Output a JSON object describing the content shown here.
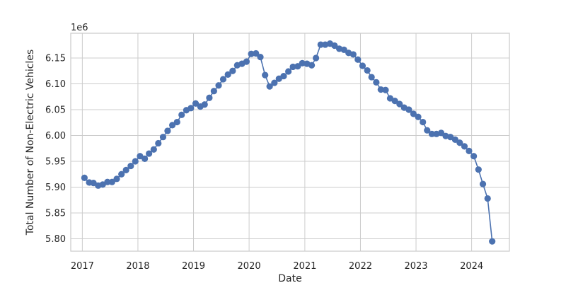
{
  "chart_data": {
    "type": "line",
    "title": "",
    "xlabel": "Date",
    "ylabel": "Total Number of Non-Electric Vehicles",
    "offset_label": "1e6",
    "y_multiplier": 1000000,
    "x_ticks": [
      "2017",
      "2018",
      "2019",
      "2020",
      "2021",
      "2022",
      "2023",
      "2024"
    ],
    "y_ticks": [
      "5.80",
      "5.85",
      "5.90",
      "5.95",
      "6.00",
      "6.05",
      "6.10",
      "6.15"
    ],
    "xlim": [
      "2016-10-17",
      "2024-09-05"
    ],
    "ylim": [
      5.776,
      6.198
    ],
    "grid": true,
    "legend": "none",
    "colors": {
      "line": "#4c72b0",
      "grid": "#cccccc"
    },
    "series": [
      {
        "marker": "circle",
        "points": [
          [
            "2017-01",
            5.918
          ],
          [
            "2017-02",
            5.909
          ],
          [
            "2017-03",
            5.908
          ],
          [
            "2017-04",
            5.903
          ],
          [
            "2017-05",
            5.905
          ],
          [
            "2017-06",
            5.91
          ],
          [
            "2017-07",
            5.91
          ],
          [
            "2017-08",
            5.916
          ],
          [
            "2017-09",
            5.925
          ],
          [
            "2017-10",
            5.933
          ],
          [
            "2017-11",
            5.941
          ],
          [
            "2017-12",
            5.95
          ],
          [
            "2018-01",
            5.96
          ],
          [
            "2018-02",
            5.955
          ],
          [
            "2018-03",
            5.965
          ],
          [
            "2018-04",
            5.973
          ],
          [
            "2018-05",
            5.985
          ],
          [
            "2018-06",
            5.997
          ],
          [
            "2018-07",
            6.009
          ],
          [
            "2018-08",
            6.02
          ],
          [
            "2018-09",
            6.026
          ],
          [
            "2018-10",
            6.04
          ],
          [
            "2018-11",
            6.049
          ],
          [
            "2018-12",
            6.053
          ],
          [
            "2019-01",
            6.062
          ],
          [
            "2019-02",
            6.056
          ],
          [
            "2019-03",
            6.06
          ],
          [
            "2019-04",
            6.073
          ],
          [
            "2019-05",
            6.086
          ],
          [
            "2019-06",
            6.097
          ],
          [
            "2019-07",
            6.109
          ],
          [
            "2019-08",
            6.118
          ],
          [
            "2019-09",
            6.125
          ],
          [
            "2019-10",
            6.136
          ],
          [
            "2019-11",
            6.139
          ],
          [
            "2019-12",
            6.143
          ],
          [
            "2020-01",
            6.158
          ],
          [
            "2020-02",
            6.159
          ],
          [
            "2020-03",
            6.152
          ],
          [
            "2020-04",
            6.117
          ],
          [
            "2020-05",
            6.095
          ],
          [
            "2020-06",
            6.102
          ],
          [
            "2020-07",
            6.11
          ],
          [
            "2020-08",
            6.115
          ],
          [
            "2020-09",
            6.124
          ],
          [
            "2020-10",
            6.133
          ],
          [
            "2020-11",
            6.134
          ],
          [
            "2020-12",
            6.14
          ],
          [
            "2021-01",
            6.139
          ],
          [
            "2021-02",
            6.136
          ],
          [
            "2021-03",
            6.15
          ],
          [
            "2021-04",
            6.176
          ],
          [
            "2021-05",
            6.176
          ],
          [
            "2021-06",
            6.178
          ],
          [
            "2021-07",
            6.174
          ],
          [
            "2021-08",
            6.168
          ],
          [
            "2021-09",
            6.166
          ],
          [
            "2021-10",
            6.16
          ],
          [
            "2021-11",
            6.157
          ],
          [
            "2021-12",
            6.147
          ],
          [
            "2022-01",
            6.135
          ],
          [
            "2022-02",
            6.126
          ],
          [
            "2022-03",
            6.113
          ],
          [
            "2022-04",
            6.103
          ],
          [
            "2022-05",
            6.089
          ],
          [
            "2022-06",
            6.088
          ],
          [
            "2022-07",
            6.072
          ],
          [
            "2022-08",
            6.067
          ],
          [
            "2022-09",
            6.061
          ],
          [
            "2022-10",
            6.054
          ],
          [
            "2022-11",
            6.05
          ],
          [
            "2022-12",
            6.042
          ],
          [
            "2023-01",
            6.036
          ],
          [
            "2023-02",
            6.026
          ],
          [
            "2023-03",
            6.01
          ],
          [
            "2023-04",
            6.003
          ],
          [
            "2023-05",
            6.003
          ],
          [
            "2023-06",
            6.005
          ],
          [
            "2023-07",
            5.999
          ],
          [
            "2023-08",
            5.997
          ],
          [
            "2023-09",
            5.992
          ],
          [
            "2023-10",
            5.986
          ],
          [
            "2023-11",
            5.979
          ],
          [
            "2023-12",
            5.97
          ],
          [
            "2024-01",
            5.96
          ],
          [
            "2024-02",
            5.934
          ],
          [
            "2024-03",
            5.906
          ],
          [
            "2024-04",
            5.878
          ],
          [
            "2024-05",
            5.795
          ]
        ]
      }
    ]
  }
}
